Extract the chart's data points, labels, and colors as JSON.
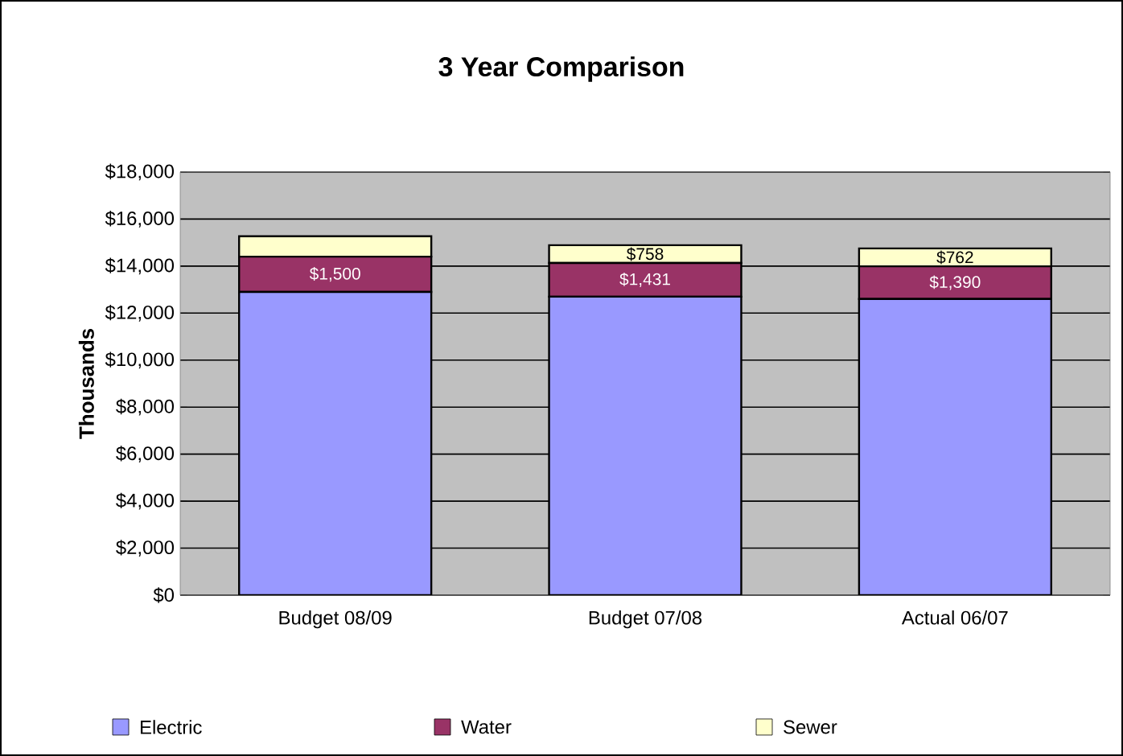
{
  "chart_data": {
    "type": "bar",
    "title": "3 Year Comparison",
    "ylabel": "Thousands",
    "stacked": true,
    "categories": [
      "Budget 08/09",
      "Budget 07/08",
      "Actual 06/07"
    ],
    "series": [
      {
        "name": "Electric",
        "color": "#9999ff",
        "values": [
          12900,
          12700,
          12600
        ]
      },
      {
        "name": "Water",
        "color": "#993366",
        "values": [
          1500,
          1431,
          1390
        ],
        "value_labels": [
          "$1,500",
          "$1,431",
          "$1,390"
        ]
      },
      {
        "name": "Sewer",
        "color": "#ffffcc",
        "values": [
          870,
          758,
          762
        ],
        "value_labels": [
          null,
          "$758",
          "$762"
        ]
      }
    ],
    "ylim": [
      0,
      18000
    ],
    "yticks": [
      {
        "value": 0,
        "label": "$0"
      },
      {
        "value": 2000,
        "label": "$2,000"
      },
      {
        "value": 4000,
        "label": "$4,000"
      },
      {
        "value": 6000,
        "label": "$6,000"
      },
      {
        "value": 8000,
        "label": "$8,000"
      },
      {
        "value": 10000,
        "label": "$10,000"
      },
      {
        "value": 12000,
        "label": "$12,000"
      },
      {
        "value": 14000,
        "label": "$14,000"
      },
      {
        "value": 16000,
        "label": "$16,000"
      },
      {
        "value": 18000,
        "label": "$18,000"
      }
    ],
    "grid": "y",
    "legend": "bottom"
  }
}
